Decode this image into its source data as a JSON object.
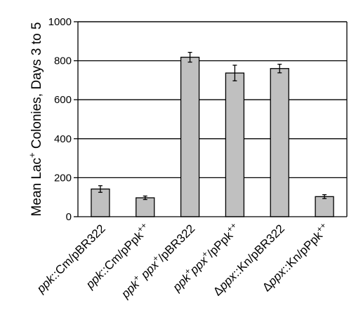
{
  "chart_data": {
    "type": "bar",
    "ylabel": {
      "prefix": "Mean Lac",
      "superscript": "+",
      "suffix": " Colonies, Days 3 to 5"
    },
    "ylim": [
      0,
      1000
    ],
    "yticks": [
      "0",
      "200",
      "400",
      "600",
      "800",
      "1000"
    ],
    "ytick_values": [
      0,
      200,
      400,
      600,
      800,
      1000
    ],
    "grid": true,
    "bar_color": "#c0c0c0",
    "categories": [
      {
        "parts": [
          {
            "t": "ppk",
            "i": true
          },
          {
            "t": "::Cm/pBR322"
          }
        ]
      },
      {
        "parts": [
          {
            "t": "ppk",
            "i": true
          },
          {
            "t": "::Cm/pPpk"
          },
          {
            "t": "++",
            "sup": true
          }
        ]
      },
      {
        "parts": [
          {
            "t": "ppk",
            "i": true
          },
          {
            "t": "+",
            "sup": true
          },
          {
            "t": " ppx",
            "i": true
          },
          {
            "t": "+",
            "sup": true
          },
          {
            "t": "/pBR322"
          }
        ]
      },
      {
        "parts": [
          {
            "t": "ppk",
            "i": true
          },
          {
            "t": "+",
            "sup": true
          },
          {
            "t": "ppx",
            "i": true
          },
          {
            "t": "+",
            "sup": true
          },
          {
            "t": "/pPpk"
          },
          {
            "t": "++",
            "sup": true
          }
        ]
      },
      {
        "parts": [
          {
            "t": "Δ"
          },
          {
            "t": "ppx",
            "i": true
          },
          {
            "t": "::Kn/pBR322"
          }
        ]
      },
      {
        "parts": [
          {
            "t": "Δ"
          },
          {
            "t": "ppx",
            "i": true
          },
          {
            "t": "::Kn/pPpk"
          },
          {
            "t": "++",
            "sup": true
          }
        ]
      }
    ],
    "values": [
      142,
      97,
      818,
      737,
      760,
      103
    ],
    "errors": [
      17,
      9,
      25,
      40,
      22,
      10
    ]
  }
}
